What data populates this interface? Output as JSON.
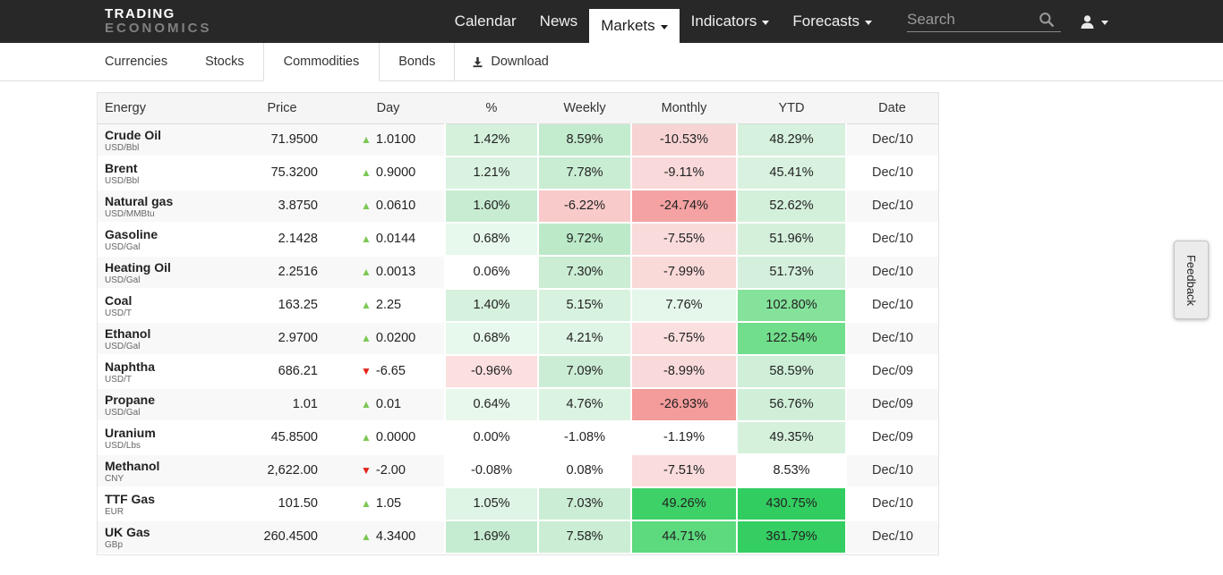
{
  "navbar": {
    "logo_line1": "TRADING",
    "logo_line2": "ECONOMICS",
    "items": [
      {
        "label": "Calendar",
        "active": false,
        "caret": false
      },
      {
        "label": "News",
        "active": false,
        "caret": false
      },
      {
        "label": "Markets",
        "active": true,
        "caret": true
      },
      {
        "label": "Indicators",
        "active": false,
        "caret": true
      },
      {
        "label": "Forecasts",
        "active": false,
        "caret": true
      }
    ],
    "search_placeholder": "Search"
  },
  "tabs": {
    "items": [
      {
        "label": "Currencies",
        "active": false
      },
      {
        "label": "Stocks",
        "active": false
      },
      {
        "label": "Commodities",
        "active": true
      },
      {
        "label": "Bonds",
        "active": false
      }
    ],
    "download_label": "Download"
  },
  "colors": {
    "up": "#7dc855",
    "down": "#e3231a",
    "navbar_bg": "#282828",
    "header_bg": "#f5f5f5"
  },
  "table": {
    "headers": [
      "Energy",
      "Price",
      "Day",
      "%",
      "Weekly",
      "Monthly",
      "YTD",
      "Date"
    ],
    "rows": [
      {
        "name": "Crude Oil",
        "unit": "USD/Bbl",
        "price": "71.9500",
        "dir": "up",
        "change": "1.0100",
        "pct": {
          "v": "1.42%",
          "bg": "#d5f1dc"
        },
        "weekly": {
          "v": "8.59%",
          "bg": "#c3ebce"
        },
        "monthly": {
          "v": "-10.53%",
          "bg": "#f8d3d3"
        },
        "ytd": {
          "v": "48.29%",
          "bg": "#d6f1dd"
        },
        "date": "Dec/10"
      },
      {
        "name": "Brent",
        "unit": "USD/Bbl",
        "price": "75.3200",
        "dir": "up",
        "change": "0.9000",
        "pct": {
          "v": "1.21%",
          "bg": "#daf3e1"
        },
        "weekly": {
          "v": "7.78%",
          "bg": "#c9edd3"
        },
        "monthly": {
          "v": "-9.11%",
          "bg": "#f9d9d9"
        },
        "ytd": {
          "v": "45.41%",
          "bg": "#d8f2df"
        },
        "date": "Dec/10"
      },
      {
        "name": "Natural gas",
        "unit": "USD/MMBtu",
        "price": "3.8750",
        "dir": "up",
        "change": "0.0610",
        "pct": {
          "v": "1.60%",
          "bg": "#c7ecd1"
        },
        "weekly": {
          "v": "-6.22%",
          "bg": "#f8caca"
        },
        "monthly": {
          "v": "-24.74%",
          "bg": "#f4a2a2"
        },
        "ytd": {
          "v": "52.62%",
          "bg": "#d3f0db"
        },
        "date": "Dec/10"
      },
      {
        "name": "Gasoline",
        "unit": "USD/Gal",
        "price": "2.1428",
        "dir": "up",
        "change": "0.0144",
        "pct": {
          "v": "0.68%",
          "bg": "#e7f8ec"
        },
        "weekly": {
          "v": "9.72%",
          "bg": "#bce9c8"
        },
        "monthly": {
          "v": "-7.55%",
          "bg": "#fadbdb"
        },
        "ytd": {
          "v": "51.96%",
          "bg": "#d4f0db"
        },
        "date": "Dec/10"
      },
      {
        "name": "Heating Oil",
        "unit": "USD/Gal",
        "price": "2.2516",
        "dir": "up",
        "change": "0.0013",
        "pct": {
          "v": "0.06%",
          "bg": "#ffffff"
        },
        "weekly": {
          "v": "7.30%",
          "bg": "#cbedd4"
        },
        "monthly": {
          "v": "-7.99%",
          "bg": "#fad9d9"
        },
        "ytd": {
          "v": "51.73%",
          "bg": "#d4f0dc"
        },
        "date": "Dec/10"
      },
      {
        "name": "Coal",
        "unit": "USD/T",
        "price": "163.25",
        "dir": "up",
        "change": "2.25",
        "pct": {
          "v": "1.40%",
          "bg": "#d6f1dd"
        },
        "weekly": {
          "v": "5.15%",
          "bg": "#d7f2de"
        },
        "monthly": {
          "v": "7.76%",
          "bg": "#e5f7ea"
        },
        "ytd": {
          "v": "102.80%",
          "bg": "#84e29b"
        },
        "date": "Dec/10"
      },
      {
        "name": "Ethanol",
        "unit": "USD/Gal",
        "price": "2.9700",
        "dir": "up",
        "change": "0.0200",
        "pct": {
          "v": "0.68%",
          "bg": "#e7f8ec"
        },
        "weekly": {
          "v": "4.21%",
          "bg": "#def4e4"
        },
        "monthly": {
          "v": "-6.75%",
          "bg": "#fbdede"
        },
        "ytd": {
          "v": "122.54%",
          "bg": "#71de8c"
        },
        "date": "Dec/10"
      },
      {
        "name": "Naphtha",
        "unit": "USD/T",
        "price": "686.21",
        "dir": "down",
        "change": "-6.65",
        "pct": {
          "v": "-0.96%",
          "bg": "#fcdfdf"
        },
        "weekly": {
          "v": "7.09%",
          "bg": "#ccedd5"
        },
        "monthly": {
          "v": "-8.99%",
          "bg": "#f9d9d9"
        },
        "ytd": {
          "v": "58.59%",
          "bg": "#cfefd8"
        },
        "date": "Dec/09"
      },
      {
        "name": "Propane",
        "unit": "USD/Gal",
        "price": "1.01",
        "dir": "up",
        "change": "0.01",
        "pct": {
          "v": "0.64%",
          "bg": "#e8f8ec"
        },
        "weekly": {
          "v": "4.76%",
          "bg": "#dbf3e1"
        },
        "monthly": {
          "v": "-26.93%",
          "bg": "#f49b9b"
        },
        "ytd": {
          "v": "56.76%",
          "bg": "#d0efd9"
        },
        "date": "Dec/09"
      },
      {
        "name": "Uranium",
        "unit": "USD/Lbs",
        "price": "45.8500",
        "dir": "up",
        "change": "0.0000",
        "pct": {
          "v": "0.00%",
          "bg": "#ffffff"
        },
        "weekly": {
          "v": "-1.08%",
          "bg": "#ffffff"
        },
        "monthly": {
          "v": "-1.19%",
          "bg": "#ffffff"
        },
        "ytd": {
          "v": "49.35%",
          "bg": "#d5f1dc"
        },
        "date": "Dec/09"
      },
      {
        "name": "Methanol",
        "unit": "CNY",
        "price": "2,622.00",
        "dir": "down",
        "change": "-2.00",
        "pct": {
          "v": "-0.08%",
          "bg": "#ffffff"
        },
        "weekly": {
          "v": "0.08%",
          "bg": "#ffffff"
        },
        "monthly": {
          "v": "-7.51%",
          "bg": "#fadcdc"
        },
        "ytd": {
          "v": "8.53%",
          "bg": "#ffffff"
        },
        "date": "Dec/10"
      },
      {
        "name": "TTF Gas",
        "unit": "EUR",
        "price": "101.50",
        "dir": "up",
        "change": "1.05",
        "pct": {
          "v": "1.05%",
          "bg": "#def4e4"
        },
        "weekly": {
          "v": "7.03%",
          "bg": "#ccedd5"
        },
        "monthly": {
          "v": "49.26%",
          "bg": "#3ed168"
        },
        "ytd": {
          "v": "430.75%",
          "bg": "#32cd60"
        },
        "date": "Dec/10"
      },
      {
        "name": "UK Gas",
        "unit": "GBp",
        "price": "260.4500",
        "dir": "up",
        "change": "4.3400",
        "pct": {
          "v": "1.69%",
          "bg": "#c5ebd0"
        },
        "weekly": {
          "v": "7.58%",
          "bg": "#caedd3"
        },
        "monthly": {
          "v": "44.71%",
          "bg": "#5dd97e"
        },
        "ytd": {
          "v": "361.79%",
          "bg": "#34ce62"
        },
        "date": "Dec/10"
      }
    ]
  },
  "feedback_label": "Feedback"
}
